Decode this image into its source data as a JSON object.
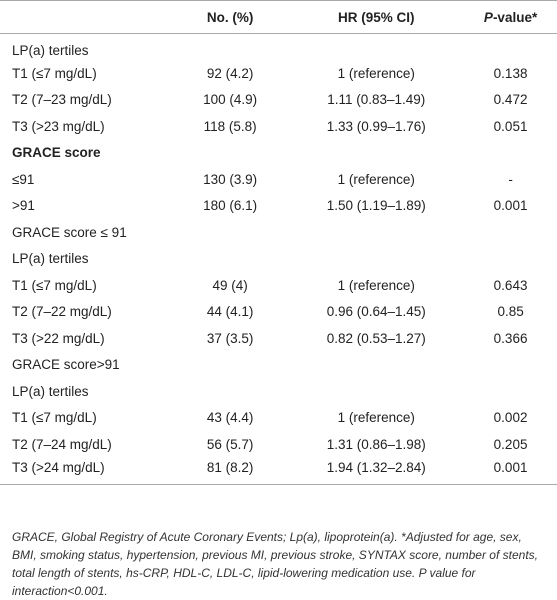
{
  "table": {
    "header": [
      "",
      "No. (%)",
      "HR (95% CI)",
      {
        "italic": "P",
        "rest": "-value*"
      }
    ],
    "rows": [
      {
        "label": "LP(a) tertiles"
      },
      {
        "cells": [
          "T1 (≤7 mg/dL)",
          "92 (4.2)",
          "1 (reference)",
          "0.138"
        ]
      },
      {
        "cells": [
          "T2 (7–23 mg/dL)",
          "100 (4.9)",
          "1.11 (0.83–1.49)",
          "0.472"
        ]
      },
      {
        "cells": [
          "T3 (>23 mg/dL)",
          "118 (5.8)",
          "1.33 (0.99–1.76)",
          "0.051"
        ]
      },
      {
        "label": "GRACE score",
        "bold": true
      },
      {
        "cells": [
          "≤91",
          "130 (3.9)",
          "1 (reference)",
          "-"
        ]
      },
      {
        "cells": [
          ">91",
          "180 (6.1)",
          "1.50 (1.19–1.89)",
          "0.001"
        ]
      },
      {
        "label": "GRACE score ≤ 91"
      },
      {
        "label": "LP(a) tertiles"
      },
      {
        "cells": [
          "T1 (≤7 mg/dL)",
          "49 (4)",
          "1 (reference)",
          "0.643"
        ]
      },
      {
        "cells": [
          "T2 (7–22 mg/dL)",
          "44 (4.1)",
          "0.96 (0.64–1.45)",
          "0.85"
        ]
      },
      {
        "cells": [
          "T3 (>22 mg/dL)",
          "37 (3.5)",
          "0.82 (0.53–1.27)",
          "0.366"
        ]
      },
      {
        "label": "GRACE score>91"
      },
      {
        "label": "LP(a) tertiles"
      },
      {
        "cells": [
          "T1 (≤7 mg/dL)",
          "43 (4.4)",
          "1 (reference)",
          "0.002"
        ]
      },
      {
        "cells": [
          "T2 (7–24 mg/dL)",
          "56 (5.7)",
          "1.31 (0.86–1.98)",
          "0.205"
        ]
      },
      {
        "cells": [
          "T3 (>24 mg/dL)",
          "81 (8.2)",
          "1.94 (1.32–2.84)",
          "0.001"
        ]
      }
    ],
    "footnote": "GRACE, Global Registry of Acute Coronary Events; Lp(a), lipoprotein(a). *Adjusted for age, sex, BMI, smoking status, hypertension, previous MI, previous stroke, SYNTAX score, number of stents, total length of stents, hs-CRP, HDL-C, LDL-C, lipid-lowering medication use. P value for interaction<0.001."
  }
}
